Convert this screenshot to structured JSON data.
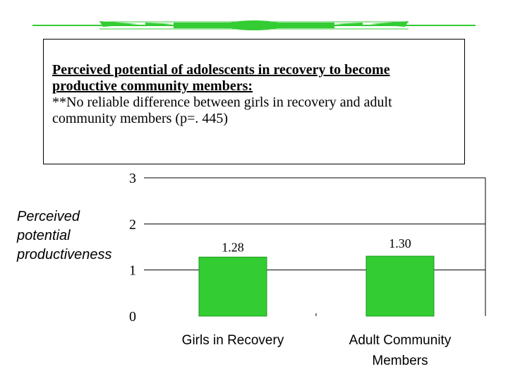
{
  "slide": {
    "heading": "Perceived potential of adolescents in recovery to become productive community members:",
    "note": "**No reliable difference between girls in recovery and adult community members (p=. 445)"
  },
  "colors": {
    "bar": "#33cc33",
    "bar_edge": "#1a9a1a",
    "divider": "#33cc33"
  },
  "chart_data": {
    "type": "bar",
    "categories": [
      "Girls in Recovery",
      "Adult Community Members"
    ],
    "values": [
      1.28,
      1.3
    ],
    "data_labels": [
      "1.28",
      "1.30"
    ],
    "ylim": [
      0,
      3
    ],
    "yticks": [
      "0",
      "1",
      "2",
      "3"
    ],
    "ylabel_lines": [
      "Perceived",
      "potential",
      "productiveness"
    ],
    "xlabel": "",
    "grid": true
  }
}
